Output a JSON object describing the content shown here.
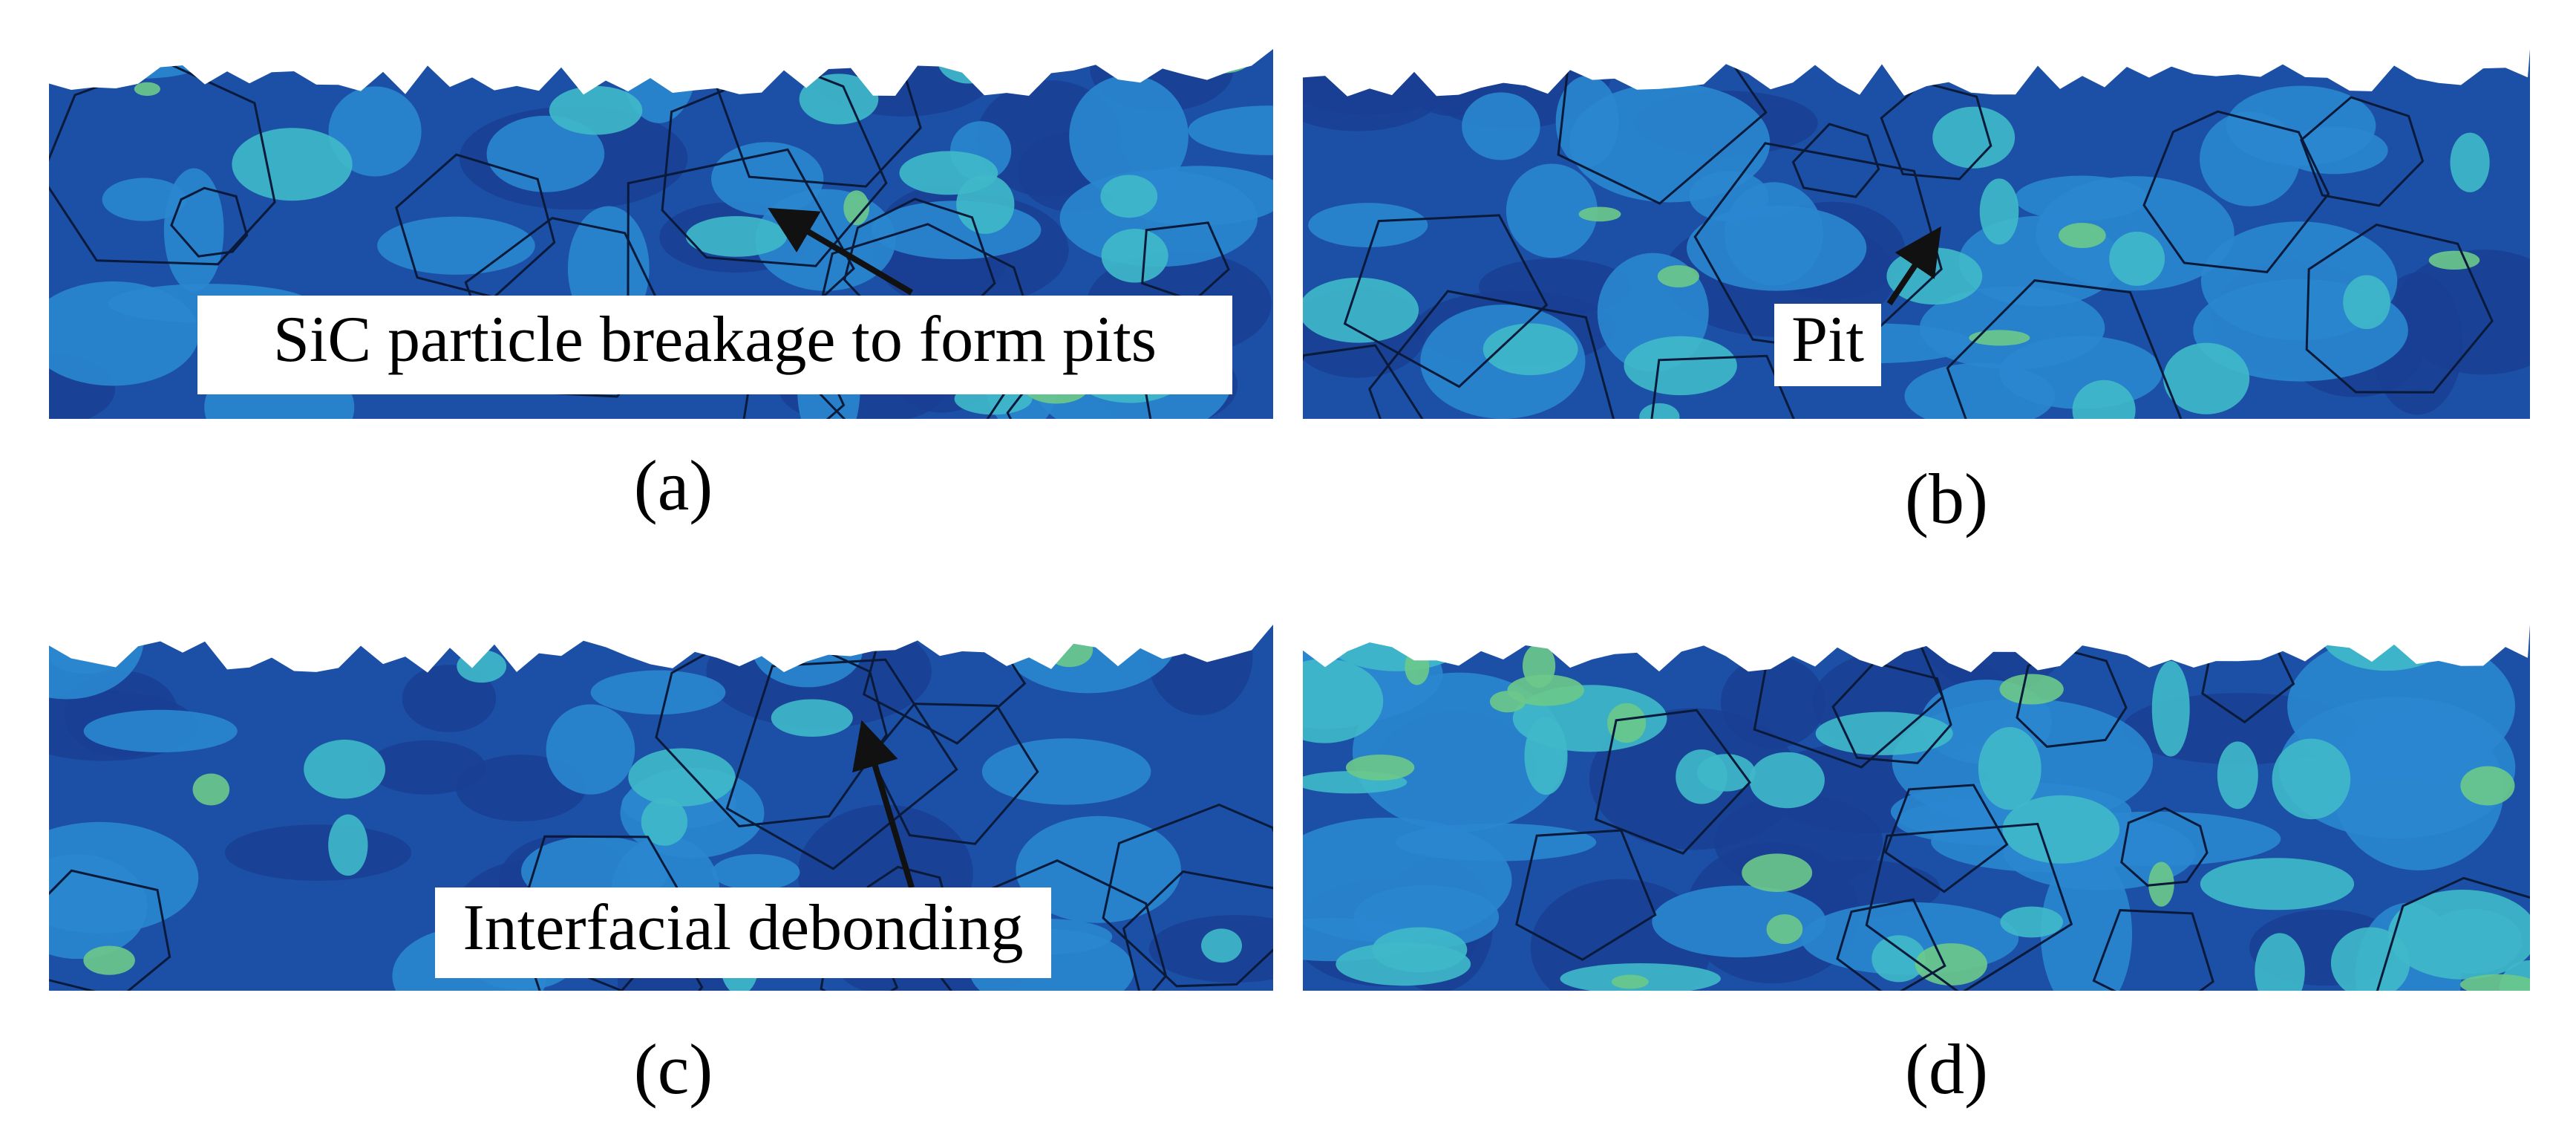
{
  "panels": [
    {
      "label": "(a)",
      "annotation": "SiC particle breakage to form pits"
    },
    {
      "label": "(b)",
      "annotation": "Pit"
    },
    {
      "label": "(c)",
      "annotation": "Interfacial debonding"
    },
    {
      "label": "(d)"
    }
  ]
}
